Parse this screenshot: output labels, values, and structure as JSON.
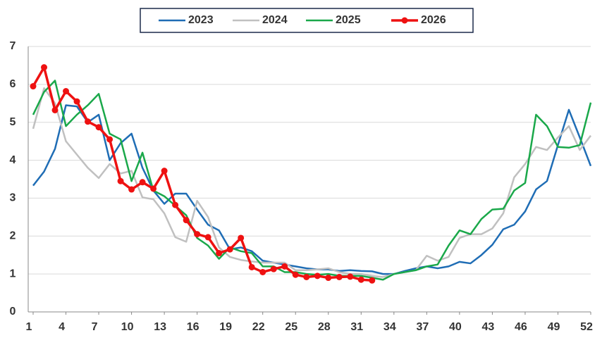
{
  "chart_data": {
    "type": "line",
    "x": [
      1,
      2,
      3,
      4,
      5,
      6,
      7,
      8,
      9,
      10,
      11,
      12,
      13,
      14,
      15,
      16,
      17,
      18,
      19,
      20,
      21,
      22,
      23,
      24,
      25,
      26,
      27,
      28,
      29,
      30,
      31,
      32,
      33,
      34,
      35,
      36,
      37,
      38,
      39,
      40,
      41,
      42,
      43,
      44,
      45,
      46,
      47,
      48,
      49,
      50,
      51,
      52
    ],
    "xlim": [
      1,
      52
    ],
    "xticks": [
      1,
      4,
      7,
      10,
      13,
      16,
      19,
      22,
      25,
      28,
      31,
      34,
      37,
      40,
      43,
      46,
      49,
      52
    ],
    "ylim": [
      0,
      7
    ],
    "yticks": [
      0,
      1,
      2,
      3,
      4,
      5,
      6,
      7
    ],
    "grid": true,
    "legend": "top",
    "series": [
      {
        "name": "2023",
        "color": "#1f6db5",
        "values": [
          3.33,
          3.7,
          4.3,
          5.45,
          5.42,
          5.0,
          5.2,
          4.0,
          4.45,
          4.7,
          3.8,
          3.2,
          2.85,
          3.12,
          3.12,
          2.7,
          2.3,
          2.15,
          1.65,
          1.7,
          1.6,
          1.35,
          1.3,
          1.25,
          1.2,
          1.15,
          1.12,
          1.12,
          1.08,
          1.1,
          1.08,
          1.07,
          1.0,
          1.0,
          1.08,
          1.15,
          1.2,
          1.15,
          1.2,
          1.32,
          1.28,
          1.5,
          1.77,
          2.18,
          2.3,
          2.65,
          3.23,
          3.45,
          4.4,
          5.33,
          4.6,
          3.85
        ]
      },
      {
        "name": "2024",
        "color": "#c0c0c0",
        "values": [
          4.83,
          5.9,
          5.5,
          4.5,
          4.15,
          3.8,
          3.53,
          3.9,
          3.65,
          3.72,
          3.02,
          2.97,
          2.6,
          1.97,
          1.85,
          2.93,
          2.5,
          1.7,
          1.45,
          1.37,
          1.33,
          1.3,
          1.3,
          1.3,
          1.1,
          1.1,
          1.12,
          1.15,
          1.05,
          1.0,
          1.0,
          0.95,
          0.92,
          1.0,
          1.05,
          1.1,
          1.48,
          1.35,
          1.45,
          1.95,
          2.05,
          2.05,
          2.2,
          2.6,
          3.55,
          3.9,
          4.35,
          4.27,
          4.6,
          4.9,
          4.27,
          4.65
        ]
      },
      {
        "name": "2025",
        "color": "#1aa84a",
        "values": [
          5.2,
          5.8,
          6.1,
          4.9,
          5.2,
          5.45,
          5.75,
          4.7,
          4.55,
          3.45,
          4.2,
          3.2,
          3.05,
          2.8,
          2.55,
          1.95,
          1.75,
          1.4,
          1.7,
          1.6,
          1.55,
          1.2,
          1.2,
          1.05,
          1.05,
          1.0,
          0.98,
          1.0,
          0.95,
          0.95,
          0.95,
          0.9,
          0.85,
          1.0,
          1.05,
          1.1,
          1.2,
          1.25,
          1.75,
          2.15,
          2.05,
          2.45,
          2.7,
          2.72,
          3.2,
          3.4,
          5.2,
          4.9,
          4.35,
          4.33,
          4.4,
          5.52
        ]
      },
      {
        "name": "2026",
        "color": "#ee1111",
        "markers": true,
        "values": [
          5.95,
          6.45,
          5.32,
          5.82,
          5.55,
          5.02,
          4.87,
          4.55,
          3.45,
          3.23,
          3.42,
          3.25,
          3.72,
          2.82,
          2.42,
          2.05,
          1.97,
          1.55,
          1.65,
          1.95,
          1.18,
          1.05,
          1.13,
          1.2,
          0.98,
          0.92,
          0.95,
          0.9,
          0.92,
          0.93,
          0.85,
          0.83,
          null,
          null,
          null,
          null,
          null,
          null,
          null,
          null,
          null,
          null,
          null,
          null,
          null,
          null,
          null,
          null,
          null,
          null,
          null,
          null
        ]
      }
    ]
  }
}
